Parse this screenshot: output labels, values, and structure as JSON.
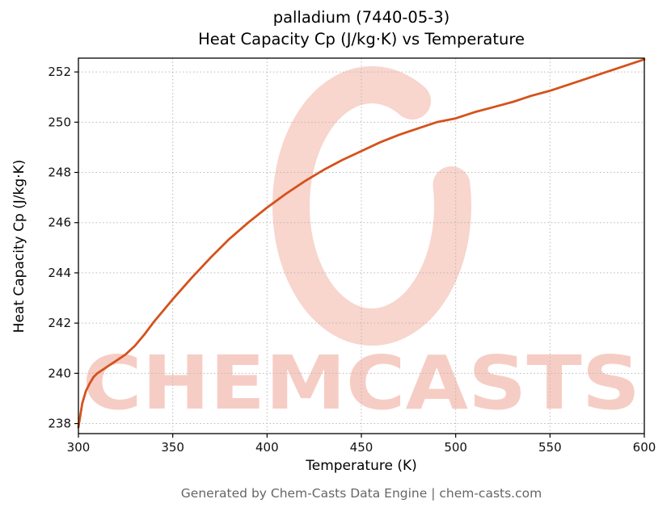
{
  "page": {
    "title_line1": "palladium (7440-05-3)",
    "title_line2": "Heat Capacity Cp (J/kg·K) vs Temperature",
    "footer": "Generated by Chem-Casts Data Engine | chem-casts.com"
  },
  "watermark": {
    "text": "CHEMCASTS",
    "color": "#e0502e",
    "logo": "chemcasts-ring-logo"
  },
  "chart_data": {
    "type": "line",
    "title": "palladium (7440-05-3)",
    "subtitle": "Heat Capacity Cp (J/kg·K) vs Temperature",
    "xlabel": "Temperature (K)",
    "ylabel": "Heat Capacity Cp (J/kg·K)",
    "xlim": [
      300,
      600
    ],
    "ylim": [
      237.6,
      252.55
    ],
    "x_ticks": [
      300,
      350,
      400,
      450,
      500,
      550,
      600
    ],
    "y_ticks": [
      238,
      240,
      242,
      244,
      246,
      248,
      250,
      252
    ],
    "grid": true,
    "legend": "none",
    "line_color": "#d4521c",
    "series": [
      {
        "name": "Heat Capacity Cp",
        "x": [
          300,
          302,
          304,
          306,
          308,
          310,
          313,
          316,
          320,
          325,
          330,
          335,
          340,
          345,
          350,
          360,
          370,
          380,
          390,
          400,
          410,
          420,
          430,
          440,
          450,
          460,
          470,
          480,
          490,
          500,
          510,
          520,
          530,
          540,
          550,
          560,
          570,
          580,
          590,
          600
        ],
        "y": [
          237.85,
          238.8,
          239.3,
          239.6,
          239.85,
          240.0,
          240.15,
          240.3,
          240.5,
          240.75,
          241.1,
          241.55,
          242.05,
          242.5,
          242.95,
          243.8,
          244.6,
          245.35,
          246.0,
          246.6,
          247.15,
          247.65,
          248.1,
          248.5,
          248.85,
          249.2,
          249.5,
          249.75,
          250.0,
          250.15,
          250.4,
          250.6,
          250.8,
          251.05,
          251.25,
          251.5,
          251.75,
          252.0,
          252.25,
          252.5
        ]
      }
    ]
  }
}
